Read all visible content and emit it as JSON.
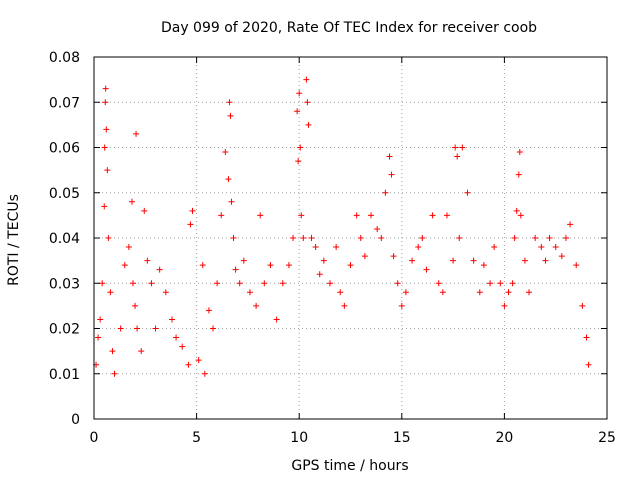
{
  "chart_data": {
    "type": "scatter",
    "title": "Day 099 of 2020, Rate Of TEC Index for receiver coob",
    "xlabel": "GPS time / hours",
    "ylabel": "ROTI / TECUs",
    "xlim": [
      0,
      25
    ],
    "ylim": [
      0,
      0.08
    ],
    "x_ticks": [
      0,
      5,
      10,
      15,
      20,
      25
    ],
    "x_tick_labels": [
      "0",
      "5",
      "10",
      "15",
      "20",
      "25"
    ],
    "y_ticks": [
      0,
      0.01,
      0.02,
      0.03,
      0.04,
      0.05,
      0.06,
      0.07,
      0.08
    ],
    "y_tick_labels": [
      "0",
      "0.01",
      "0.02",
      "0.03",
      "0.04",
      "0.05",
      "0.06",
      "0.07",
      "0.08"
    ],
    "grid": true,
    "marker": "plus",
    "series": [
      {
        "color": "#ff0000",
        "points": [
          [
            0.1,
            0.012
          ],
          [
            0.2,
            0.018
          ],
          [
            0.3,
            0.022
          ],
          [
            0.4,
            0.03
          ],
          [
            0.5,
            0.047
          ],
          [
            0.52,
            0.06
          ],
          [
            0.55,
            0.07
          ],
          [
            0.57,
            0.073
          ],
          [
            0.6,
            0.064
          ],
          [
            0.65,
            0.055
          ],
          [
            0.7,
            0.04
          ],
          [
            0.8,
            0.028
          ],
          [
            0.9,
            0.015
          ],
          [
            1.0,
            0.01
          ],
          [
            1.3,
            0.02
          ],
          [
            1.5,
            0.034
          ],
          [
            1.7,
            0.038
          ],
          [
            1.85,
            0.048
          ],
          [
            1.9,
            0.03
          ],
          [
            2.0,
            0.025
          ],
          [
            2.05,
            0.063
          ],
          [
            2.1,
            0.02
          ],
          [
            2.3,
            0.015
          ],
          [
            2.45,
            0.046
          ],
          [
            2.6,
            0.035
          ],
          [
            2.8,
            0.03
          ],
          [
            3.0,
            0.02
          ],
          [
            3.2,
            0.033
          ],
          [
            3.5,
            0.028
          ],
          [
            3.8,
            0.022
          ],
          [
            4.0,
            0.018
          ],
          [
            4.3,
            0.016
          ],
          [
            4.6,
            0.012
          ],
          [
            4.7,
            0.043
          ],
          [
            4.8,
            0.046
          ],
          [
            5.1,
            0.013
          ],
          [
            5.3,
            0.034
          ],
          [
            5.4,
            0.01
          ],
          [
            5.6,
            0.024
          ],
          [
            5.8,
            0.02
          ],
          [
            6.0,
            0.03
          ],
          [
            6.2,
            0.045
          ],
          [
            6.4,
            0.059
          ],
          [
            6.55,
            0.053
          ],
          [
            6.6,
            0.07
          ],
          [
            6.65,
            0.067
          ],
          [
            6.7,
            0.048
          ],
          [
            6.8,
            0.04
          ],
          [
            6.9,
            0.033
          ],
          [
            7.1,
            0.03
          ],
          [
            7.3,
            0.035
          ],
          [
            7.6,
            0.028
          ],
          [
            7.9,
            0.025
          ],
          [
            8.1,
            0.045
          ],
          [
            8.3,
            0.03
          ],
          [
            8.6,
            0.034
          ],
          [
            8.9,
            0.022
          ],
          [
            9.2,
            0.03
          ],
          [
            9.5,
            0.034
          ],
          [
            9.7,
            0.04
          ],
          [
            9.9,
            0.068
          ],
          [
            9.95,
            0.057
          ],
          [
            10.0,
            0.072
          ],
          [
            10.05,
            0.06
          ],
          [
            10.1,
            0.045
          ],
          [
            10.2,
            0.04
          ],
          [
            10.35,
            0.075
          ],
          [
            10.4,
            0.07
          ],
          [
            10.45,
            0.065
          ],
          [
            10.6,
            0.04
          ],
          [
            10.8,
            0.038
          ],
          [
            11.0,
            0.032
          ],
          [
            11.2,
            0.035
          ],
          [
            11.5,
            0.03
          ],
          [
            11.8,
            0.038
          ],
          [
            12.0,
            0.028
          ],
          [
            12.2,
            0.025
          ],
          [
            12.5,
            0.034
          ],
          [
            12.8,
            0.045
          ],
          [
            13.0,
            0.04
          ],
          [
            13.2,
            0.036
          ],
          [
            13.5,
            0.045
          ],
          [
            13.8,
            0.042
          ],
          [
            14.0,
            0.04
          ],
          [
            14.2,
            0.05
          ],
          [
            14.4,
            0.058
          ],
          [
            14.5,
            0.054
          ],
          [
            14.6,
            0.036
          ],
          [
            14.8,
            0.03
          ],
          [
            15.0,
            0.025
          ],
          [
            15.2,
            0.028
          ],
          [
            15.5,
            0.035
          ],
          [
            15.8,
            0.038
          ],
          [
            16.0,
            0.04
          ],
          [
            16.2,
            0.033
          ],
          [
            16.5,
            0.045
          ],
          [
            16.8,
            0.03
          ],
          [
            17.0,
            0.028
          ],
          [
            17.2,
            0.045
          ],
          [
            17.5,
            0.035
          ],
          [
            17.6,
            0.06
          ],
          [
            17.7,
            0.058
          ],
          [
            17.8,
            0.04
          ],
          [
            17.95,
            0.06
          ],
          [
            18.2,
            0.05
          ],
          [
            18.5,
            0.035
          ],
          [
            18.8,
            0.028
          ],
          [
            19.0,
            0.034
          ],
          [
            19.3,
            0.03
          ],
          [
            19.5,
            0.038
          ],
          [
            19.8,
            0.03
          ],
          [
            20.0,
            0.025
          ],
          [
            20.2,
            0.028
          ],
          [
            20.4,
            0.03
          ],
          [
            20.5,
            0.04
          ],
          [
            20.6,
            0.046
          ],
          [
            20.7,
            0.054
          ],
          [
            20.75,
            0.059
          ],
          [
            20.8,
            0.045
          ],
          [
            21.0,
            0.035
          ],
          [
            21.2,
            0.028
          ],
          [
            21.5,
            0.04
          ],
          [
            21.8,
            0.038
          ],
          [
            22.0,
            0.035
          ],
          [
            22.2,
            0.04
          ],
          [
            22.5,
            0.038
          ],
          [
            22.8,
            0.036
          ],
          [
            23.0,
            0.04
          ],
          [
            23.2,
            0.043
          ],
          [
            23.5,
            0.034
          ],
          [
            23.8,
            0.025
          ],
          [
            24.0,
            0.018
          ],
          [
            24.1,
            0.012
          ]
        ]
      }
    ]
  }
}
